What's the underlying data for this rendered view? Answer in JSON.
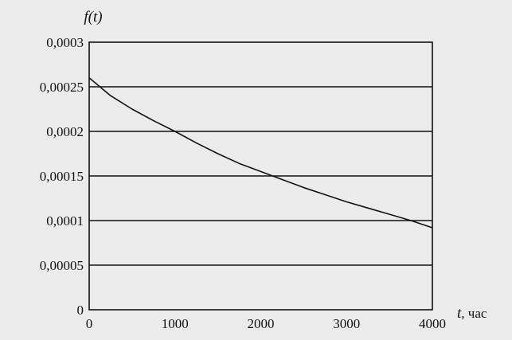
{
  "chart_data": {
    "type": "line",
    "title": "",
    "ylabel": "f(t)",
    "xlabel_var": "t",
    "xlabel_unit": ", час",
    "xlim": [
      0,
      4000
    ],
    "ylim": [
      0,
      0.0003
    ],
    "x_ticks": [
      0,
      1000,
      2000,
      3000,
      4000
    ],
    "x_tick_labels": [
      "0",
      "1000",
      "2000",
      "3000",
      "4000"
    ],
    "y_ticks": [
      0,
      5e-05,
      0.0001,
      0.00015,
      0.0002,
      0.00025,
      0.0003
    ],
    "y_tick_labels": [
      "0",
      "0,00005",
      "0,0001",
      "0,00015",
      "0,0002",
      "0,00025",
      "0,0003"
    ],
    "grid": "horizontal",
    "legend": "none",
    "series": [
      {
        "x": [
          0,
          250,
          500,
          750,
          1000,
          1250,
          1500,
          1750,
          2000,
          2250,
          2500,
          2750,
          3000,
          3250,
          3500,
          3750,
          4000
        ],
        "values": [
          0.00026,
          0.00024,
          0.000225,
          0.000212,
          0.0002,
          0.000187,
          0.000175,
          0.000164,
          0.000155,
          0.000146,
          0.000137,
          0.000129,
          0.000121,
          0.000114,
          0.000107,
          0.0001,
          9.2e-05
        ],
        "color": "#111111"
      }
    ]
  }
}
